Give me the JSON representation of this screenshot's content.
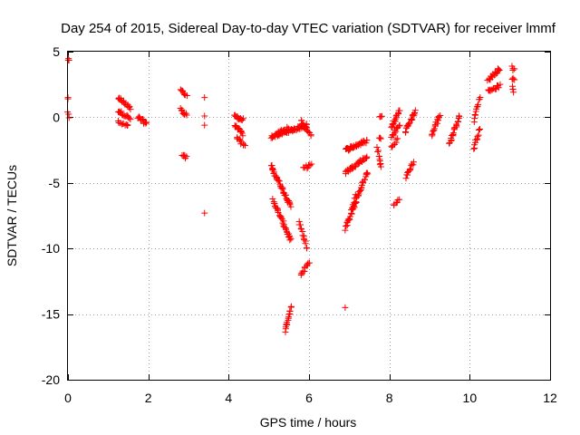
{
  "chart_data": {
    "type": "scatter",
    "title": "Day 254 of 2015, Sidereal Day-to-day VTEC variation (SDTVAR) for receiver lmmf",
    "xlabel": "GPS time / hours",
    "ylabel": "SDTVAR / TECUs",
    "xlim": [
      0,
      12
    ],
    "ylim": [
      -20,
      5
    ],
    "xticks": [
      0,
      2,
      4,
      6,
      8,
      10,
      12
    ],
    "yticks": [
      -20,
      -15,
      -10,
      -5,
      0,
      5
    ],
    "xtick_labels": [
      "0",
      "2",
      "4",
      "6",
      "8",
      "10",
      "12"
    ],
    "ytick_labels": [
      "-20",
      "-15",
      "-10",
      "-5",
      "0",
      "5"
    ],
    "grid": true,
    "marker": "+",
    "color": "#ff0000",
    "series": [
      {
        "name": "SDTVAR",
        "segments": [
          {
            "x0": 0.0,
            "y0": 4.4,
            "x1": 0.02,
            "y1": 4.3,
            "n": 3
          },
          {
            "x0": 0.0,
            "y0": 1.5,
            "x1": 0.0,
            "y1": 1.4,
            "n": 2
          },
          {
            "x0": 0.0,
            "y0": 0.3,
            "x1": 0.02,
            "y1": 0.0,
            "n": 3
          },
          {
            "x0": 1.25,
            "y0": 1.5,
            "x1": 1.55,
            "y1": 0.7,
            "n": 18
          },
          {
            "x0": 1.25,
            "y0": 0.5,
            "x1": 1.55,
            "y1": -0.1,
            "n": 16
          },
          {
            "x0": 1.25,
            "y0": -0.4,
            "x1": 1.5,
            "y1": -0.7,
            "n": 12
          },
          {
            "x0": 1.75,
            "y0": 0.0,
            "x1": 1.95,
            "y1": -0.5,
            "n": 14
          },
          {
            "x0": 2.8,
            "y0": 2.2,
            "x1": 2.95,
            "y1": 1.6,
            "n": 8
          },
          {
            "x0": 2.8,
            "y0": 0.6,
            "x1": 2.95,
            "y1": 0.2,
            "n": 10
          },
          {
            "x0": 2.85,
            "y0": -2.9,
            "x1": 2.95,
            "y1": -3.1,
            "n": 6
          },
          {
            "x0": 3.4,
            "y0": 1.5,
            "x1": 3.4,
            "y1": 1.5,
            "n": 1
          },
          {
            "x0": 3.4,
            "y0": 0.1,
            "x1": 3.4,
            "y1": 0.1,
            "n": 1
          },
          {
            "x0": 3.4,
            "y0": -0.6,
            "x1": 3.4,
            "y1": -0.6,
            "n": 1
          },
          {
            "x0": 3.4,
            "y0": -7.3,
            "x1": 3.4,
            "y1": -7.3,
            "n": 1
          },
          {
            "x0": 4.15,
            "y0": 0.1,
            "x1": 4.35,
            "y1": -0.2,
            "n": 14
          },
          {
            "x0": 4.15,
            "y0": -0.6,
            "x1": 4.35,
            "y1": -1.3,
            "n": 14
          },
          {
            "x0": 4.2,
            "y0": -1.6,
            "x1": 4.4,
            "y1": -2.2,
            "n": 10
          },
          {
            "x0": 5.05,
            "y0": -1.5,
            "x1": 5.95,
            "y1": -0.6,
            "n": 60
          },
          {
            "x0": 5.2,
            "y0": -1.2,
            "x1": 5.5,
            "y1": -0.8,
            "n": 14
          },
          {
            "x0": 5.8,
            "y0": -0.3,
            "x1": 6.05,
            "y1": -1.4,
            "n": 16
          },
          {
            "x0": 5.05,
            "y0": -3.7,
            "x1": 5.55,
            "y1": -6.8,
            "n": 40
          },
          {
            "x0": 5.1,
            "y0": -6.3,
            "x1": 5.55,
            "y1": -9.4,
            "n": 35
          },
          {
            "x0": 5.85,
            "y0": -3.9,
            "x1": 6.05,
            "y1": -3.6,
            "n": 10
          },
          {
            "x0": 5.75,
            "y0": -8.0,
            "x1": 5.95,
            "y1": -10.0,
            "n": 14
          },
          {
            "x0": 5.8,
            "y0": -12.0,
            "x1": 6.0,
            "y1": -11.0,
            "n": 12
          },
          {
            "x0": 5.4,
            "y0": -16.3,
            "x1": 5.55,
            "y1": -14.4,
            "n": 16
          },
          {
            "x0": 6.9,
            "y0": -14.5,
            "x1": 6.9,
            "y1": -14.5,
            "n": 1
          },
          {
            "x0": 6.9,
            "y0": -2.5,
            "x1": 7.45,
            "y1": -1.8,
            "n": 32
          },
          {
            "x0": 6.9,
            "y0": -4.2,
            "x1": 7.45,
            "y1": -3.0,
            "n": 32
          },
          {
            "x0": 6.9,
            "y0": -8.5,
            "x1": 7.45,
            "y1": -4.2,
            "n": 45
          },
          {
            "x0": 7.05,
            "y0": -7.0,
            "x1": 7.15,
            "y1": -6.0,
            "n": 6
          },
          {
            "x0": 7.75,
            "y0": 0.1,
            "x1": 7.8,
            "y1": 0.0,
            "n": 4
          },
          {
            "x0": 7.75,
            "y0": -1.5,
            "x1": 7.8,
            "y1": -1.7,
            "n": 3
          },
          {
            "x0": 7.7,
            "y0": -2.4,
            "x1": 7.8,
            "y1": -3.8,
            "n": 10
          },
          {
            "x0": 8.05,
            "y0": -0.8,
            "x1": 8.25,
            "y1": 0.5,
            "n": 16
          },
          {
            "x0": 8.05,
            "y0": -1.5,
            "x1": 8.25,
            "y1": -0.6,
            "n": 12
          },
          {
            "x0": 8.05,
            "y0": -2.3,
            "x1": 8.2,
            "y1": -1.7,
            "n": 8
          },
          {
            "x0": 8.1,
            "y0": -6.7,
            "x1": 8.25,
            "y1": -6.3,
            "n": 6
          },
          {
            "x0": 8.4,
            "y0": -1.1,
            "x1": 8.65,
            "y1": 0.5,
            "n": 18
          },
          {
            "x0": 8.4,
            "y0": -4.6,
            "x1": 8.6,
            "y1": -3.4,
            "n": 12
          },
          {
            "x0": 9.05,
            "y0": -1.4,
            "x1": 9.25,
            "y1": 0.2,
            "n": 18
          },
          {
            "x0": 9.5,
            "y0": -2.0,
            "x1": 9.75,
            "y1": 0.1,
            "n": 22
          },
          {
            "x0": 10.1,
            "y0": -2.4,
            "x1": 10.25,
            "y1": -0.8,
            "n": 12
          },
          {
            "x0": 10.1,
            "y0": -0.3,
            "x1": 10.25,
            "y1": 1.6,
            "n": 12
          },
          {
            "x0": 10.45,
            "y0": 2.8,
            "x1": 10.75,
            "y1": 3.7,
            "n": 18
          },
          {
            "x0": 10.45,
            "y0": 2.0,
            "x1": 10.75,
            "y1": 2.4,
            "n": 16
          },
          {
            "x0": 11.05,
            "y0": 3.8,
            "x1": 11.1,
            "y1": 3.6,
            "n": 4
          },
          {
            "x0": 11.05,
            "y0": 3.0,
            "x1": 11.1,
            "y1": 2.8,
            "n": 4
          },
          {
            "x0": 11.05,
            "y0": 2.3,
            "x1": 11.1,
            "y1": 1.9,
            "n": 4
          }
        ]
      }
    ]
  }
}
